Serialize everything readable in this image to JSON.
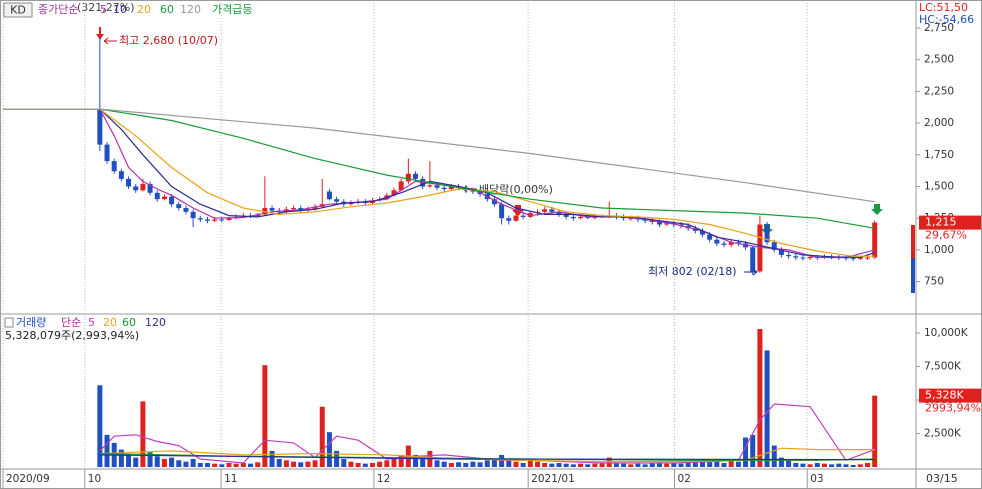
{
  "header": {
    "symbol": "KD",
    "change_note": "(321,27%)",
    "lc": "LC:51,50",
    "hc": "HC:-54,66"
  },
  "chart_data": [
    {
      "type": "candlestick",
      "indicator": "종가단순",
      "signal": "가격급등",
      "up_color": "#e0221f",
      "down_color": "#1f4fc1",
      "grid": true,
      "xlim": [
        -13.5,
        113.2
      ],
      "ylim": [
        510,
        2947
      ],
      "yticks": [
        750,
        {
          "value": 1000,
          "label": "1,000"
        },
        {
          "value": 1250,
          "label": "1,250"
        },
        {
          "value": 1500,
          "label": "1,500"
        },
        {
          "value": 1750,
          "label": "1,750"
        },
        {
          "value": 2000,
          "label": "2,000"
        },
        {
          "value": 2250,
          "label": "2,250"
        },
        {
          "value": 2500,
          "label": "2,500"
        },
        {
          "value": 2750,
          "label": "2,750"
        }
      ],
      "x": [
        0,
        1,
        2,
        3,
        4,
        5,
        6,
        7,
        8,
        9,
        10,
        11,
        12,
        13,
        14,
        15,
        16,
        17,
        18,
        19,
        20,
        21,
        22,
        23,
        24,
        25,
        26,
        27,
        28,
        29,
        30,
        31,
        32,
        33,
        34,
        35,
        36,
        37,
        38,
        39,
        40,
        41,
        42,
        43,
        44,
        45,
        46,
        47,
        48,
        49,
        50,
        51,
        52,
        53,
        54,
        55,
        56,
        57,
        58,
        59,
        60,
        61,
        62,
        63,
        64,
        65,
        66,
        67,
        68,
        69,
        70,
        71,
        72,
        73,
        74,
        75,
        76,
        77,
        78,
        79,
        80,
        81,
        82,
        83,
        84,
        85,
        86,
        87,
        88,
        89,
        90,
        91,
        92,
        93,
        94,
        95,
        96,
        97,
        98,
        99,
        100,
        101,
        102,
        103,
        104,
        105,
        106,
        107,
        108
      ],
      "open": [
        2110,
        1830,
        1700,
        1620,
        1560,
        1500,
        1470,
        1520,
        1450,
        1400,
        1420,
        1360,
        1330,
        1300,
        1250,
        1240,
        1230,
        1240,
        1235,
        1250,
        1260,
        1270,
        1265,
        1280,
        1330,
        1310,
        1300,
        1320,
        1330,
        1310,
        1320,
        1340,
        1460,
        1400,
        1380,
        1360,
        1370,
        1380,
        1370,
        1390,
        1400,
        1430,
        1470,
        1540,
        1600,
        1560,
        1500,
        1510,
        1490,
        1480,
        1500,
        1490,
        1470,
        1460,
        1440,
        1400,
        1360,
        1250,
        1230,
        1270,
        1260,
        1290,
        1300,
        1320,
        1300,
        1280,
        1260,
        1250,
        1260,
        1255,
        1260,
        1265,
        1270,
        1260,
        1250,
        1250,
        1240,
        1230,
        1220,
        1200,
        1210,
        1200,
        1190,
        1170,
        1150,
        1120,
        1080,
        1050,
        1040,
        1060,
        1050,
        1020,
        830,
        1200,
        1060,
        1000,
        960,
        950,
        940,
        935,
        945,
        940,
        950,
        945,
        940,
        935,
        930,
        940,
        940
      ],
      "high": [
        2680,
        1850,
        1720,
        1640,
        1580,
        1520,
        1560,
        1540,
        1470,
        1440,
        1440,
        1380,
        1350,
        1320,
        1270,
        1260,
        1260,
        1260,
        1260,
        1280,
        1290,
        1290,
        1290,
        1580,
        1350,
        1330,
        1340,
        1350,
        1350,
        1340,
        1360,
        1560,
        1480,
        1420,
        1400,
        1390,
        1400,
        1400,
        1410,
        1420,
        1450,
        1490,
        1560,
        1720,
        1620,
        1580,
        1700,
        1530,
        1510,
        1520,
        1520,
        1510,
        1490,
        1480,
        1460,
        1420,
        1380,
        1270,
        1290,
        1290,
        1310,
        1320,
        1340,
        1340,
        1320,
        1300,
        1280,
        1280,
        1280,
        1280,
        1280,
        1380,
        1290,
        1280,
        1270,
        1270,
        1260,
        1250,
        1240,
        1230,
        1230,
        1220,
        1210,
        1190,
        1170,
        1140,
        1100,
        1070,
        1080,
        1080,
        1070,
        1030,
        1270,
        1220,
        1080,
        1020,
        980,
        970,
        960,
        960,
        960,
        965,
        965,
        960,
        955,
        950,
        955,
        955,
        1230
      ],
      "low": [
        1780,
        1680,
        1600,
        1540,
        1480,
        1450,
        1460,
        1430,
        1380,
        1390,
        1340,
        1310,
        1280,
        1180,
        1220,
        1210,
        1220,
        1220,
        1230,
        1240,
        1250,
        1250,
        1260,
        1270,
        1290,
        1280,
        1290,
        1310,
        1290,
        1300,
        1310,
        1330,
        1390,
        1360,
        1340,
        1350,
        1360,
        1350,
        1360,
        1380,
        1390,
        1420,
        1460,
        1520,
        1540,
        1480,
        1490,
        1470,
        1460,
        1470,
        1470,
        1450,
        1440,
        1420,
        1380,
        1340,
        1200,
        1200,
        1220,
        1240,
        1250,
        1270,
        1280,
        1280,
        1260,
        1240,
        1230,
        1240,
        1240,
        1240,
        1250,
        1250,
        1240,
        1230,
        1230,
        1220,
        1210,
        1200,
        1180,
        1190,
        1180,
        1170,
        1150,
        1130,
        1100,
        1060,
        1030,
        1020,
        1020,
        1030,
        1000,
        802,
        820,
        1040,
        980,
        940,
        930,
        920,
        915,
        920,
        920,
        930,
        925,
        920,
        915,
        910,
        920,
        920,
        930
      ],
      "close": [
        1830,
        1700,
        1620,
        1560,
        1500,
        1470,
        1520,
        1450,
        1400,
        1420,
        1360,
        1330,
        1300,
        1250,
        1240,
        1230,
        1240,
        1235,
        1250,
        1260,
        1270,
        1265,
        1280,
        1330,
        1310,
        1300,
        1320,
        1330,
        1310,
        1320,
        1340,
        1360,
        1400,
        1380,
        1360,
        1370,
        1380,
        1370,
        1390,
        1400,
        1430,
        1470,
        1540,
        1600,
        1560,
        1500,
        1510,
        1490,
        1480,
        1500,
        1490,
        1470,
        1460,
        1440,
        1400,
        1360,
        1250,
        1230,
        1270,
        1260,
        1290,
        1300,
        1320,
        1300,
        1280,
        1260,
        1250,
        1260,
        1255,
        1260,
        1265,
        1270,
        1260,
        1250,
        1250,
        1240,
        1230,
        1220,
        1200,
        1210,
        1200,
        1190,
        1170,
        1150,
        1120,
        1080,
        1050,
        1040,
        1060,
        1050,
        1020,
        820,
        1200,
        1060,
        1000,
        960,
        950,
        940,
        935,
        945,
        940,
        950,
        945,
        940,
        935,
        930,
        940,
        940,
        1215
      ],
      "series": [
        {
          "name": "5",
          "color": "#b02fb0",
          "x": [
            0,
            2,
            4,
            6,
            8,
            10,
            13,
            16,
            20,
            24,
            28,
            32,
            36,
            40,
            44,
            48,
            52,
            56,
            60,
            64,
            68,
            72,
            76,
            80,
            84,
            88,
            92,
            96,
            100,
            104,
            108
          ],
          "values": [
            2110,
            1900,
            1650,
            1540,
            1480,
            1430,
            1330,
            1250,
            1255,
            1300,
            1315,
            1360,
            1375,
            1400,
            1540,
            1510,
            1480,
            1360,
            1270,
            1300,
            1260,
            1265,
            1240,
            1205,
            1150,
            1060,
            1020,
            1000,
            940,
            940,
            1000
          ]
        },
        {
          "name": "10",
          "color": "#2b2b9a",
          "x": [
            0,
            3,
            6,
            10,
            14,
            18,
            22,
            26,
            30,
            34,
            38,
            42,
            46,
            50,
            54,
            58,
            62,
            66,
            70,
            74,
            78,
            82,
            86,
            90,
            94,
            98,
            102,
            106,
            108
          ],
          "values": [
            2110,
            1950,
            1750,
            1500,
            1360,
            1270,
            1260,
            1300,
            1320,
            1370,
            1380,
            1450,
            1540,
            1500,
            1450,
            1330,
            1280,
            1280,
            1260,
            1260,
            1230,
            1200,
            1100,
            1060,
            1010,
            960,
            945,
            940,
            980
          ]
        },
        {
          "name": "20",
          "color": "#e8a317",
          "x": [
            -13.5,
            0,
            5,
            10,
            15,
            20,
            25,
            30,
            35,
            40,
            45,
            50,
            55,
            60,
            65,
            70,
            75,
            80,
            85,
            90,
            95,
            100,
            105,
            108
          ],
          "values": [
            2110,
            2110,
            1900,
            1650,
            1450,
            1330,
            1280,
            1300,
            1340,
            1370,
            1420,
            1480,
            1460,
            1380,
            1300,
            1270,
            1260,
            1240,
            1200,
            1130,
            1050,
            990,
            950,
            950
          ]
        },
        {
          "name": "60",
          "color": "#1a9a3a",
          "x": [
            -13.5,
            0,
            10,
            20,
            30,
            40,
            50,
            60,
            70,
            80,
            90,
            100,
            108
          ],
          "values": [
            2110,
            2110,
            2020,
            1880,
            1720,
            1590,
            1490,
            1400,
            1330,
            1310,
            1290,
            1250,
            1170
          ]
        },
        {
          "name": "120",
          "color": "#999999",
          "x": [
            -13.5,
            0,
            30,
            60,
            90,
            108
          ],
          "values": [
            2110,
            2110,
            1960,
            1760,
            1530,
            1380
          ]
        }
      ],
      "annotations": [
        "최고 2,680 (10/07)",
        "최저 802 (02/18)",
        "배당락(0,00%)"
      ],
      "last_label": "1,215",
      "last_change": "29,67%"
    },
    {
      "type": "bar",
      "name": "거래량",
      "indicator": "단순",
      "up_color": "#e0221f",
      "down_color": "#1f4fc1",
      "grid": true,
      "xlim": [
        -13.5,
        113.2
      ],
      "ylim": [
        0,
        11270
      ],
      "yticks": [
        {
          "value": 2500,
          "label": "2,500K"
        },
        {
          "value": 5000,
          "label": "5,000K"
        },
        {
          "value": 7500,
          "label": "7,500K"
        },
        {
          "value": 10000,
          "label": "10,000K"
        }
      ],
      "xticks": [
        {
          "value": -13.5,
          "label": "2020/09"
        },
        {
          "value": -2.1,
          "label": "10"
        },
        {
          "value": 16.9,
          "label": "11"
        },
        {
          "value": 38.2,
          "label": "12"
        },
        {
          "value": 59.7,
          "label": "2021/01"
        },
        {
          "value": 80.1,
          "label": "02"
        },
        {
          "value": 98.6,
          "label": "03"
        }
      ],
      "current_date": "03/15",
      "x": [
        0,
        1,
        2,
        3,
        4,
        5,
        6,
        7,
        8,
        9,
        10,
        11,
        12,
        13,
        14,
        15,
        16,
        17,
        18,
        19,
        20,
        21,
        22,
        23,
        24,
        25,
        26,
        27,
        28,
        29,
        30,
        31,
        32,
        33,
        34,
        35,
        36,
        37,
        38,
        39,
        40,
        41,
        42,
        43,
        44,
        45,
        46,
        47,
        48,
        49,
        50,
        51,
        52,
        53,
        54,
        55,
        56,
        57,
        58,
        59,
        60,
        61,
        62,
        63,
        64,
        65,
        66,
        67,
        68,
        69,
        70,
        71,
        72,
        73,
        74,
        75,
        76,
        77,
        78,
        79,
        80,
        81,
        82,
        83,
        84,
        85,
        86,
        87,
        88,
        89,
        90,
        91,
        92,
        93,
        94,
        95,
        96,
        97,
        98,
        99,
        100,
        101,
        102,
        103,
        104,
        105,
        106,
        107,
        108
      ],
      "values": [
        6100,
        2400,
        1800,
        1300,
        1000,
        700,
        4900,
        1100,
        800,
        600,
        700,
        500,
        400,
        600,
        300,
        300,
        250,
        200,
        300,
        250,
        300,
        250,
        350,
        7600,
        1200,
        600,
        500,
        400,
        350,
        400,
        500,
        4500,
        2600,
        1200,
        600,
        400,
        300,
        250,
        300,
        400,
        500,
        700,
        900,
        1600,
        900,
        600,
        1200,
        500,
        400,
        300,
        350,
        300,
        400,
        350,
        500,
        600,
        900,
        500,
        400,
        300,
        600,
        400,
        300,
        250,
        300,
        250,
        200,
        250,
        200,
        250,
        300,
        700,
        300,
        250,
        200,
        250,
        200,
        300,
        350,
        250,
        300,
        250,
        400,
        500,
        600,
        400,
        500,
        300,
        600,
        400,
        2200,
        2400,
        10300,
        8700,
        1600,
        700,
        500,
        300,
        250,
        200,
        300,
        250,
        200,
        250,
        200,
        150,
        200,
        300,
        5328
      ],
      "series": [
        {
          "name": "5",
          "color": "#c040c0",
          "x": [
            0,
            2,
            5,
            8,
            11,
            14,
            20,
            23,
            27,
            30,
            33,
            36,
            40,
            44,
            48,
            52,
            56,
            60,
            65,
            70,
            75,
            80,
            85,
            89,
            92,
            94,
            99,
            104,
            108
          ],
          "values": [
            1200,
            2300,
            2400,
            1900,
            1600,
            600,
            300,
            2000,
            1800,
            700,
            2300,
            2000,
            600,
            800,
            900,
            700,
            500,
            500,
            400,
            300,
            300,
            300,
            400,
            500,
            3500,
            4700,
            4500,
            500,
            1300
          ]
        },
        {
          "name": "20",
          "color": "#e8a317",
          "x": [
            0,
            10,
            20,
            30,
            40,
            50,
            60,
            70,
            80,
            90,
            95,
            100,
            108
          ],
          "values": [
            1000,
            1200,
            900,
            1000,
            900,
            600,
            500,
            400,
            400,
            500,
            1400,
            1300,
            1300
          ]
        },
        {
          "name": "60",
          "color": "#1a9a3a",
          "x": [
            0,
            20,
            40,
            60,
            80,
            100,
            108
          ],
          "values": [
            1000,
            800,
            700,
            600,
            500,
            500,
            600
          ]
        },
        {
          "name": "120",
          "color": "#2b2b9a",
          "x": [
            0,
            50,
            108
          ],
          "values": [
            900,
            600,
            550
          ]
        }
      ],
      "total_label": "5,328,079주(2,993,94%)",
      "last_label": "5,328K",
      "last_change": "2993,94%"
    }
  ]
}
